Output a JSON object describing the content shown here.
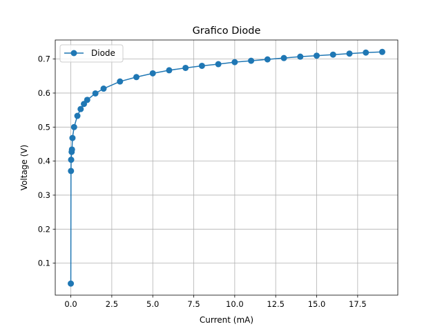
{
  "chart_data": {
    "type": "line",
    "title": "Grafico Diode",
    "xlabel": "Current (mA)",
    "ylabel": "Voltage (V)",
    "xlim": [
      -0.95,
      19.95
    ],
    "ylim": [
      0.006,
      0.756
    ],
    "grid": true,
    "legend_position": "top-left",
    "x_ticks": [
      {
        "value": 0.0,
        "label": "0.0"
      },
      {
        "value": 2.5,
        "label": "2.5"
      },
      {
        "value": 5.0,
        "label": "5.0"
      },
      {
        "value": 7.5,
        "label": "7.5"
      },
      {
        "value": 10.0,
        "label": "10.0"
      },
      {
        "value": 12.5,
        "label": "12.5"
      },
      {
        "value": 15.0,
        "label": "15.0"
      },
      {
        "value": 17.5,
        "label": "17.5"
      }
    ],
    "y_ticks": [
      {
        "value": 0.1,
        "label": "0.1"
      },
      {
        "value": 0.2,
        "label": "0.2"
      },
      {
        "value": 0.3,
        "label": "0.3"
      },
      {
        "value": 0.4,
        "label": "0.4"
      },
      {
        "value": 0.5,
        "label": "0.5"
      },
      {
        "value": 0.6,
        "label": "0.6"
      },
      {
        "value": 0.7,
        "label": "0.7"
      }
    ],
    "series": [
      {
        "name": "Diode",
        "color": "#1f77b4",
        "x": [
          0.0,
          0.01,
          0.02,
          0.05,
          0.07,
          0.1,
          0.2,
          0.4,
          0.6,
          0.8,
          1.0,
          1.5,
          2.0,
          3.0,
          4.0,
          5.0,
          6.0,
          7.0,
          8.0,
          9.0,
          10.0,
          11.0,
          12.0,
          13.0,
          14.0,
          15.0,
          16.0,
          17.0,
          18.0,
          19.0
        ],
        "y": [
          0.04,
          0.371,
          0.404,
          0.427,
          0.434,
          0.468,
          0.5,
          0.533,
          0.553,
          0.568,
          0.58,
          0.599,
          0.613,
          0.634,
          0.647,
          0.658,
          0.667,
          0.674,
          0.68,
          0.685,
          0.691,
          0.695,
          0.699,
          0.703,
          0.707,
          0.71,
          0.713,
          0.716,
          0.719,
          0.721
        ]
      }
    ]
  }
}
